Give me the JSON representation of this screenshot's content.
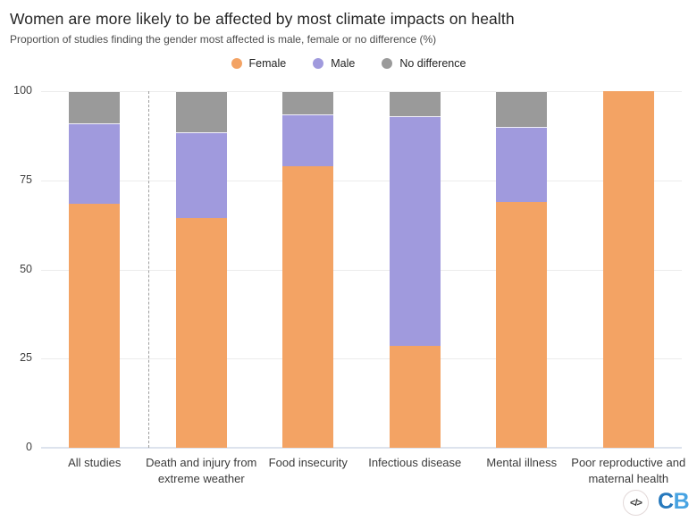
{
  "header": {
    "title": "Women are more likely to be affected by most climate impacts on health",
    "subtitle": "Proportion of studies finding the gender most affected is male, female or no difference (%)"
  },
  "chart_data": {
    "type": "bar",
    "stacked": true,
    "title": "Women are more likely to be affected by most climate impacts on health",
    "subtitle": "Proportion of studies finding the gender most affected is male, female or no difference (%)",
    "categories": [
      "All studies",
      "Death and injury from extreme weather",
      "Food insecurity",
      "Infectious disease",
      "Mental illness",
      "Poor reproductive and maternal health"
    ],
    "series": [
      {
        "name": "Female",
        "color": "#F3A364",
        "values": [
          68.5,
          64.5,
          79,
          28.5,
          69,
          100
        ]
      },
      {
        "name": "Male",
        "color": "#A09ADD",
        "values": [
          22.5,
          24,
          14.5,
          64.5,
          21,
          0
        ]
      },
      {
        "name": "No difference",
        "color": "#9A9A9A",
        "values": [
          9,
          11.5,
          6.5,
          7,
          10,
          0
        ]
      }
    ],
    "ylim": [
      0,
      100
    ],
    "yticks": [
      0,
      25,
      50,
      75,
      100
    ],
    "grid": "horizontal",
    "legend_position": "top-center",
    "divider_after_category_index": 0
  },
  "footer": {
    "embed_icon": "</>",
    "logo": {
      "text": "CB",
      "letter_colors": [
        "#2779BD",
        "#47A3E2"
      ]
    }
  },
  "colors": {
    "female": "#F3A364",
    "male": "#A09ADD",
    "no_difference": "#9A9A9A",
    "gridline": "#ececec",
    "axis_line": "#dde3ed",
    "divider": "#9e9e9e"
  }
}
